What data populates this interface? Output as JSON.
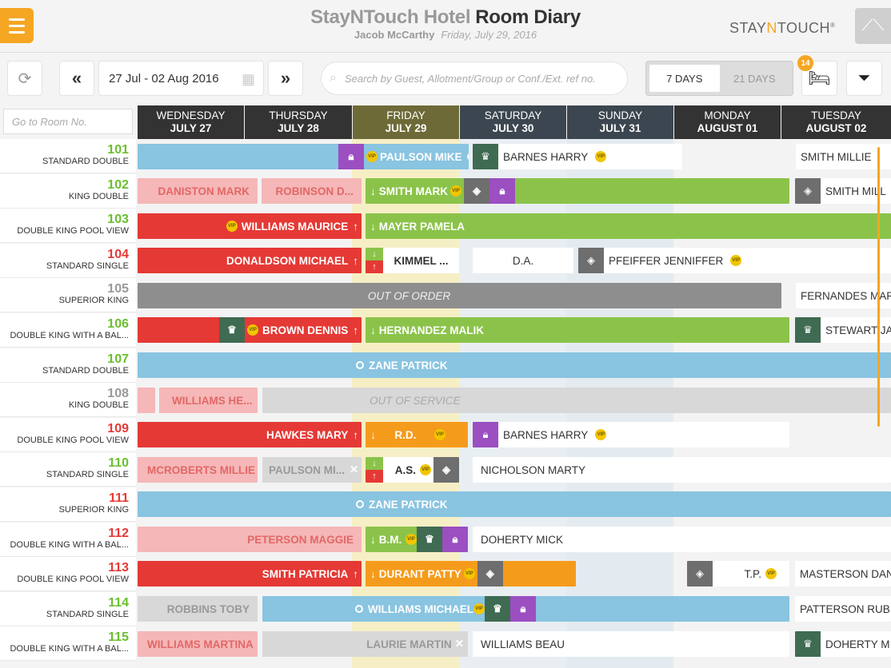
{
  "header": {
    "hotel_name": "StayNTouch Hotel",
    "page_title": "Room Diary",
    "user_name": "Jacob McCarthy",
    "business_date": "Friday, July 29, 2016",
    "logo_text": "STAYNTOUCH",
    "logo_pre": "STAY",
    "logo_n": "N",
    "logo_post": "TOUCH",
    "logo_reg": "®"
  },
  "toolbar": {
    "date_range": "27 Jul - 02 Aug 2016",
    "search_placeholder": "Search by Guest, Allotment/Group or Conf./Ext. ref no.",
    "view_7": "7 DAYS",
    "view_21": "21 DAYS",
    "unassigned_count": "14",
    "goto_placeholder": "Go to Room No."
  },
  "days": [
    {
      "name": "WEDNESDAY",
      "date": "JULY 27"
    },
    {
      "name": "THURSDAY",
      "date": "JULY 28"
    },
    {
      "name": "FRIDAY",
      "date": "JULY 29"
    },
    {
      "name": "SATURDAY",
      "date": "JULY 30"
    },
    {
      "name": "SUNDAY",
      "date": "JULY 31"
    },
    {
      "name": "MONDAY",
      "date": "AUGUST 01"
    },
    {
      "name": "TUESDAY",
      "date": "AUGUST 02"
    }
  ],
  "colors": {
    "accent": "#f5a623",
    "checked_in": "#8bc34a",
    "departed": "#e53935",
    "reserved": "#89c4e1",
    "out_of_order": "#8e8e8e",
    "vip": "#f2c500"
  },
  "rooms": [
    {
      "number": "101",
      "type": "STANDARD DOUBLE",
      "status": "green"
    },
    {
      "number": "102",
      "type": "KING DOUBLE",
      "status": "green"
    },
    {
      "number": "103",
      "type": "DOUBLE KING POOL VIEW",
      "status": "green"
    },
    {
      "number": "104",
      "type": "STANDARD SINGLE",
      "status": "red"
    },
    {
      "number": "105",
      "type": "SUPERIOR KING",
      "status": "gray"
    },
    {
      "number": "106",
      "type": "DOUBLE KING WITH A BAL...",
      "status": "green"
    },
    {
      "number": "107",
      "type": "STANDARD DOUBLE",
      "status": "green"
    },
    {
      "number": "108",
      "type": "KING DOUBLE",
      "status": "gray"
    },
    {
      "number": "109",
      "type": "DOUBLE KING POOL VIEW",
      "status": "red"
    },
    {
      "number": "110",
      "type": "STANDARD SINGLE",
      "status": "green"
    },
    {
      "number": "111",
      "type": "SUPERIOR KING",
      "status": "red"
    },
    {
      "number": "112",
      "type": "DOUBLE KING WITH A BAL...",
      "status": "red"
    },
    {
      "number": "113",
      "type": "DOUBLE KING POOL VIEW",
      "status": "red"
    },
    {
      "number": "114",
      "type": "STANDARD SINGLE",
      "status": "green"
    },
    {
      "number": "115",
      "type": "DOUBLE KING WITH A BAL...",
      "status": "green"
    }
  ],
  "reservations": {
    "r101a": "PAULSON MIKE",
    "r101b": "BARNES HARRY",
    "r101c": "SMITH MILLIE",
    "r102a": "DANISTON MARK",
    "r102b": "ROBINSON D...",
    "r102c": "SMITH MARK",
    "r102d": "SMITH MILL",
    "r103a": "WILLIAMS MAURICE",
    "r103b": "MAYER PAMELA",
    "r104a": "DONALDSON MICHAEL",
    "r104b": "KIMMEL ...",
    "r104c": "D.A.",
    "r104d": "PFEIFFER JENNIFFER",
    "r105a": "OUT OF ORDER",
    "r105b": "FERNANDES MAR",
    "r106a": "BROWN DENNIS",
    "r106b": "HERNANDEZ MALIK",
    "r106c": "STEWART JA",
    "r107a": "ZANE PATRICK",
    "r108a": "WILLIAMS HE...",
    "r108b": "OUT OF SERVICE",
    "r109a": "HAWKES MARY",
    "r109b": "R.D.",
    "r109c": "BARNES HARRY",
    "r110a": "MCROBERTS MILLIE",
    "r110b": "PAULSON MI...",
    "r110c": "A.S.",
    "r110d": "NICHOLSON MARTY",
    "r111a": "ZANE PATRICK",
    "r112a": "PETERSON MAGGIE",
    "r112b": "B.M.",
    "r112c": "DOHERTY MICK",
    "r113a": "SMITH PATRICIA",
    "r113b": "DURANT PATTY",
    "r113c": "T.P.",
    "r113d": "MASTERSON DAN",
    "r114a": "ROBBINS TOBY",
    "r114b": "WILLIAMS MICHAEL",
    "r114c": "PATTERSON RUB",
    "r115a": "WILLIAMS MARTINA",
    "r115b": "LAURIE MARTIN",
    "r115c": "WILLIAMS BEAU",
    "r115d": "DOHERTY M"
  },
  "vip_label": "VIP"
}
